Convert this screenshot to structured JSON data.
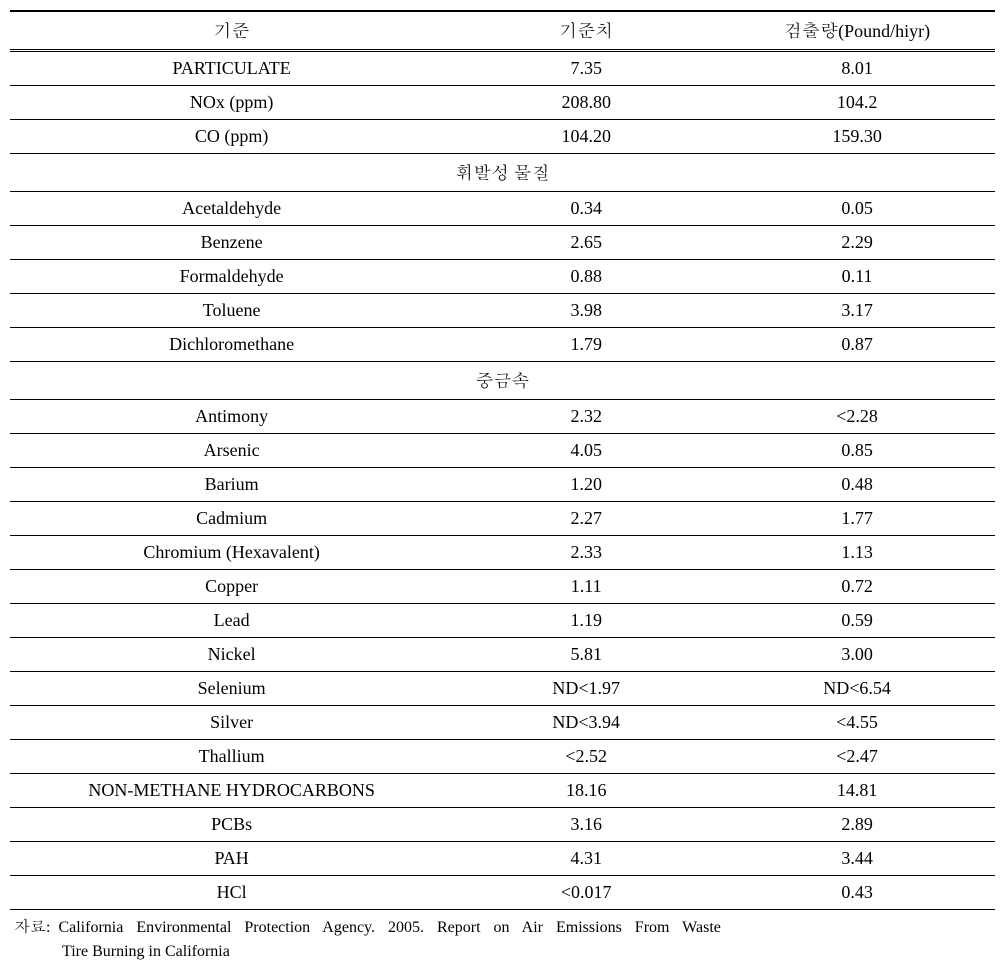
{
  "table": {
    "headers": [
      "기준",
      "기준치",
      "검출량(Pound/hiyr)"
    ],
    "background_color": "#ffffff",
    "text_color": "#000000",
    "border_color": "#000000",
    "font_size": 18,
    "column_widths": [
      "45%",
      "27%",
      "28%"
    ],
    "rows_group1": [
      {
        "label": "PARTICULATE",
        "std": "7.35",
        "det": "8.01"
      },
      {
        "label": "NOx (ppm)",
        "std": "208.80",
        "det": "104.2"
      },
      {
        "label": "CO (ppm)",
        "std": "104.20",
        "det": "159.30"
      }
    ],
    "section2_title": "휘발성 물질",
    "rows_group2": [
      {
        "label": "Acetaldehyde",
        "std": "0.34",
        "det": "0.05"
      },
      {
        "label": "Benzene",
        "std": "2.65",
        "det": "2.29"
      },
      {
        "label": "Formaldehyde",
        "std": "0.88",
        "det": "0.11"
      },
      {
        "label": "Toluene",
        "std": "3.98",
        "det": "3.17"
      },
      {
        "label": "Dichloromethane",
        "std": "1.79",
        "det": "0.87"
      }
    ],
    "section3_title": "중금속",
    "rows_group3": [
      {
        "label": "Antimony",
        "std": "2.32",
        "det": "<2.28"
      },
      {
        "label": "Arsenic",
        "std": "4.05",
        "det": "0.85"
      },
      {
        "label": "Barium",
        "std": "1.20",
        "det": "0.48"
      },
      {
        "label": "Cadmium",
        "std": "2.27",
        "det": "1.77"
      },
      {
        "label": "Chromium (Hexavalent)",
        "std": "2.33",
        "det": "1.13"
      },
      {
        "label": "Copper",
        "std": "1.11",
        "det": "0.72"
      },
      {
        "label": "Lead",
        "std": "1.19",
        "det": "0.59"
      },
      {
        "label": "Nickel",
        "std": "5.81",
        "det": "3.00"
      },
      {
        "label": "Selenium",
        "std": "ND<1.97",
        "det": "ND<6.54"
      },
      {
        "label": "Silver",
        "std": "ND<3.94",
        "det": "<4.55"
      },
      {
        "label": "Thallium",
        "std": "<2.52",
        "det": "<2.47"
      },
      {
        "label": "NON-METHANE HYDROCARBONS",
        "std": "18.16",
        "det": "14.81"
      },
      {
        "label": "PCBs",
        "std": "3.16",
        "det": "2.89"
      },
      {
        "label": "PAH",
        "std": "4.31",
        "det": "3.44"
      },
      {
        "label": "HCl",
        "std": "<0.017",
        "det": "0.43"
      }
    ]
  },
  "source": {
    "label": "자료:",
    "line1": "California Environmental Protection Agency. 2005. Report on Air Emissions From Waste",
    "line2": "Tire Burning in California"
  }
}
